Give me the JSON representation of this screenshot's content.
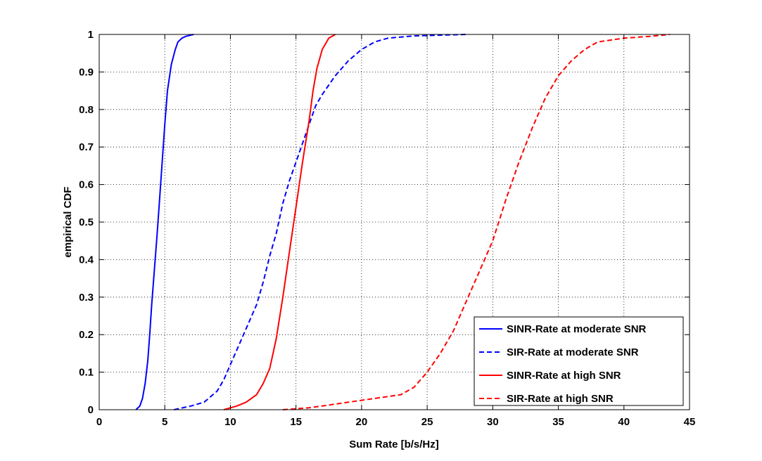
{
  "chart_data": {
    "type": "line",
    "title": "",
    "xlabel": "Sum Rate [b/s/Hz]",
    "ylabel": "empirical CDF",
    "xlim": [
      0,
      45
    ],
    "ylim": [
      0,
      1
    ],
    "xticks": [
      0,
      5,
      10,
      15,
      20,
      25,
      30,
      35,
      40,
      45
    ],
    "yticks": [
      0,
      0.1,
      0.2,
      0.3,
      0.4,
      0.5,
      0.6,
      0.7,
      0.8,
      0.9,
      1
    ],
    "xtick_labels": [
      "0",
      "5",
      "10",
      "15",
      "20",
      "25",
      "30",
      "35",
      "40",
      "45"
    ],
    "ytick_labels": [
      "0",
      "0.1",
      "0.2",
      "0.3",
      "0.4",
      "0.5",
      "0.6",
      "0.7",
      "0.8",
      "0.9",
      "1"
    ],
    "grid": true,
    "legend_position": "bottom-right",
    "series": [
      {
        "name": "SINR-Rate at moderate SNR",
        "color": "#0000ff",
        "dash": "solid",
        "x": [
          2.8,
          3.1,
          3.3,
          3.5,
          3.7,
          3.85,
          4.0,
          4.2,
          4.4,
          4.6,
          4.8,
          5.0,
          5.2,
          5.5,
          5.8,
          6.0,
          6.3,
          6.6,
          7.2
        ],
        "y": [
          0,
          0.01,
          0.03,
          0.07,
          0.13,
          0.2,
          0.28,
          0.37,
          0.46,
          0.56,
          0.66,
          0.76,
          0.85,
          0.92,
          0.96,
          0.98,
          0.99,
          0.995,
          1
        ]
      },
      {
        "name": "SIR-Rate at moderate SNR",
        "color": "#0000ff",
        "dash": "dashed",
        "x": [
          5.7,
          7,
          8,
          9,
          9.5,
          10,
          11,
          12,
          12.5,
          13,
          13.5,
          14,
          14.5,
          15,
          15.5,
          16,
          16.5,
          17,
          18,
          19,
          20,
          21,
          22,
          24,
          27,
          28
        ],
        "y": [
          0,
          0.01,
          0.02,
          0.05,
          0.08,
          0.12,
          0.2,
          0.28,
          0.34,
          0.41,
          0.47,
          0.55,
          0.61,
          0.66,
          0.71,
          0.76,
          0.81,
          0.84,
          0.89,
          0.93,
          0.96,
          0.98,
          0.99,
          0.996,
          0.999,
          1
        ]
      },
      {
        "name": "SINR-Rate at high SNR",
        "color": "#ff0000",
        "dash": "solid",
        "x": [
          9.5,
          10.5,
          11.2,
          12,
          12.5,
          13,
          13.5,
          14,
          14.5,
          15,
          15.5,
          16,
          16.3,
          16.6,
          17,
          17.5,
          18
        ],
        "y": [
          0,
          0.01,
          0.02,
          0.04,
          0.07,
          0.11,
          0.19,
          0.3,
          0.42,
          0.54,
          0.66,
          0.77,
          0.85,
          0.91,
          0.96,
          0.99,
          1
        ]
      },
      {
        "name": "SIR-Rate at high SNR",
        "color": "#ff0000",
        "dash": "dashed",
        "x": [
          14,
          16,
          17,
          18,
          20,
          22,
          23,
          24,
          25,
          26,
          27,
          28,
          29,
          30,
          31,
          32,
          33,
          34,
          35,
          36,
          37,
          38,
          39,
          40,
          42,
          43.5
        ],
        "y": [
          0,
          0.005,
          0.01,
          0.015,
          0.025,
          0.035,
          0.04,
          0.06,
          0.1,
          0.15,
          0.21,
          0.29,
          0.37,
          0.45,
          0.56,
          0.66,
          0.75,
          0.83,
          0.89,
          0.93,
          0.96,
          0.98,
          0.985,
          0.99,
          0.995,
          1
        ]
      }
    ]
  }
}
